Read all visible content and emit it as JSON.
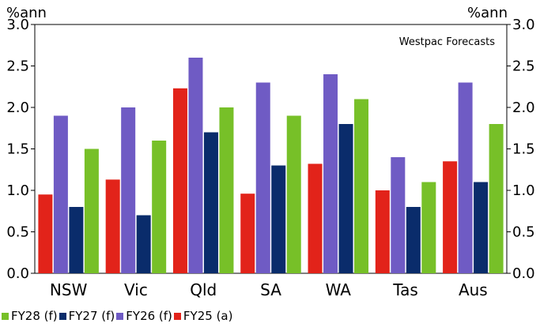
{
  "chart_data": {
    "type": "bar",
    "unit_left": "%ann",
    "unit_right": "%ann",
    "annotation": "Westpac Forecasts",
    "categories": [
      "NSW",
      "Vic",
      "Qld",
      "SA",
      "WA",
      "Tas",
      "Aus"
    ],
    "ylim": [
      0,
      3.0
    ],
    "yticks": [
      "0.0",
      "0.5",
      "1.0",
      "1.5",
      "2.0",
      "2.5",
      "3.0"
    ],
    "grid": false,
    "legend_position": "bottom",
    "series": [
      {
        "name": "FY25 (a)",
        "color": "#e2231a",
        "values": [
          0.95,
          1.13,
          2.23,
          0.96,
          1.32,
          1.0,
          1.35
        ]
      },
      {
        "name": "FY26 (f)",
        "color": "#6f5bc4",
        "values": [
          1.9,
          2.0,
          2.6,
          2.3,
          2.4,
          1.4,
          2.3
        ]
      },
      {
        "name": "FY27 (f)",
        "color": "#0a2c6b",
        "values": [
          0.8,
          0.7,
          1.7,
          1.3,
          1.8,
          0.8,
          1.1
        ]
      },
      {
        "name": "FY28 (f)",
        "color": "#77c028",
        "values": [
          1.5,
          1.6,
          2.0,
          1.9,
          2.1,
          1.1,
          1.8
        ]
      }
    ],
    "legend_order": [
      "FY28 (f)",
      "FY27 (f)",
      "FY26 (f)",
      "FY25 (a)"
    ]
  }
}
